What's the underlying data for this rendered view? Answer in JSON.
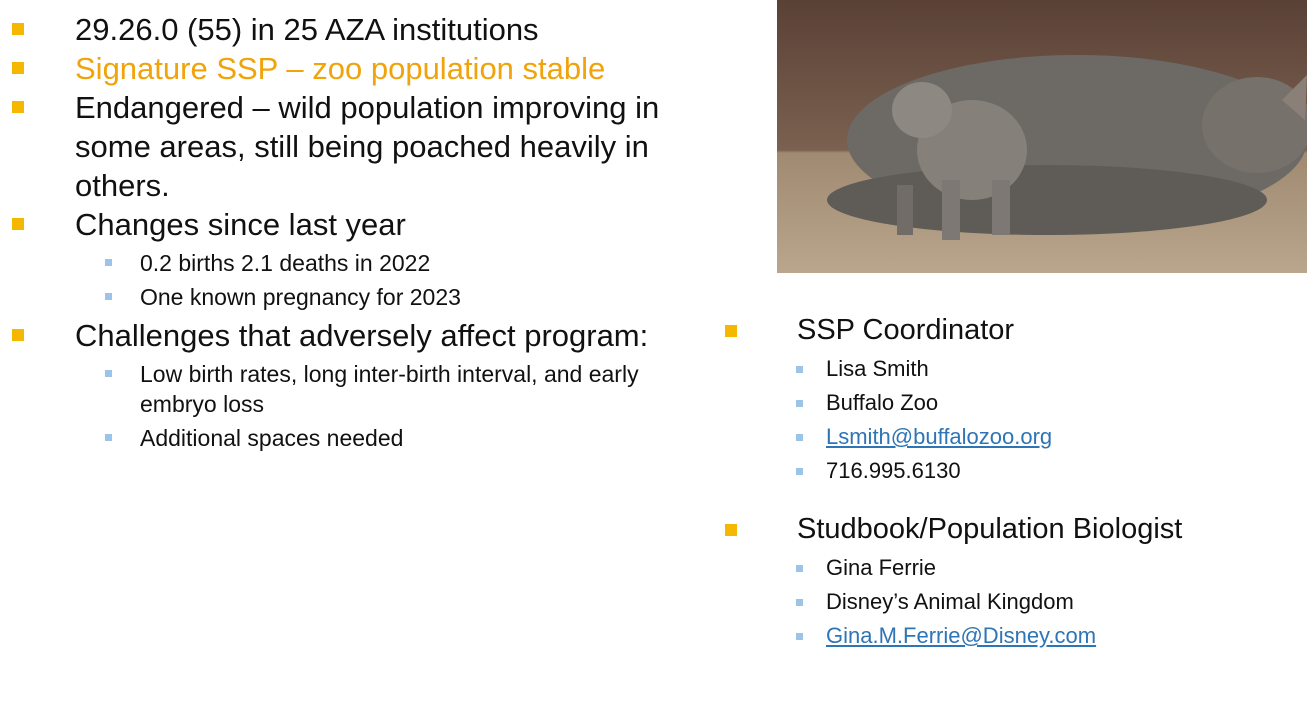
{
  "left_list": [
    {
      "text": "29.26.0 (55) in 25 AZA institutions"
    },
    {
      "text": "Signature SSP – zoo population stable",
      "color": "#f0a30a"
    },
    {
      "text": "Endangered – wild population improving in some areas, still being poached heavily in others."
    },
    {
      "text": "Changes since last year",
      "items": [
        "0.2 births 2.1 deaths in 2022",
        "One known pregnancy for 2023"
      ]
    },
    {
      "text": "Challenges that adversely affect program:",
      "items": [
        "Low birth rates, long inter-birth interval, and early embryo loss",
        "Additional spaces needed"
      ]
    }
  ],
  "right_list": [
    {
      "text": "SSP Coordinator",
      "items": [
        "Lisa Smith",
        "Buffalo Zoo",
        "Lsmith@buffalozoo.org",
        "716.995.6130"
      ]
    },
    {
      "text": "Studbook/Population Biologist",
      "items": [
        "Gina Ferrie",
        "Disney’s Animal Kingdom",
        "Gina.M.Ferrie@Disney.com"
      ]
    }
  ]
}
